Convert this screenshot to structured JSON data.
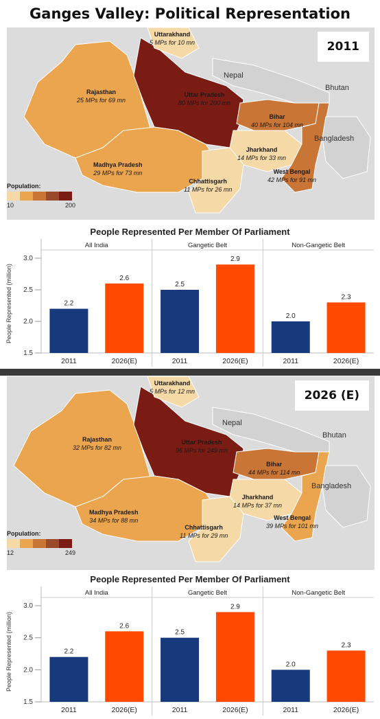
{
  "title": "Ganges Valley: Political Representation",
  "colors": {
    "blue": "#173a7d",
    "orange": "#ff4a00",
    "pop_scale": [
      "#f5d9a7",
      "#eaa54e",
      "#c87536",
      "#9a4a2a",
      "#7a1c14"
    ],
    "map_bg": "#dcdcdc"
  },
  "maps": [
    {
      "year_label": "2011",
      "legend": {
        "title": "Population:",
        "min": "10",
        "max": "200"
      },
      "geo_labels": {
        "nepal": "Nepal",
        "bhutan": "Bhutan",
        "bangladesh": "Bangladesh"
      },
      "states": [
        {
          "id": "uttarakhand",
          "name": "Uttarakhand",
          "value": "5 MPs for 10 mn"
        },
        {
          "id": "rajasthan",
          "name": "Rajasthan",
          "value": "25 MPs for 69 mn"
        },
        {
          "id": "uttar-pradesh",
          "name": "Uttar Pradesh",
          "value": "80 MPs for 200 mn"
        },
        {
          "id": "bihar",
          "name": "Bihar",
          "value": "40 MPs for 104 mn"
        },
        {
          "id": "jharkhand",
          "name": "Jharkhand",
          "value": "14 MPs for 33 mn"
        },
        {
          "id": "madhya-pradesh",
          "name": "Madhya Pradesh",
          "value": "29 MPs for 73 mn"
        },
        {
          "id": "west-bengal",
          "name": "West Bengal",
          "value": "42 MPs for 91 mn"
        },
        {
          "id": "chhattisgarh",
          "name": "Chhattisgarh",
          "value": "11 MPs for 26 mn"
        }
      ]
    },
    {
      "year_label": "2026 (E)",
      "legend": {
        "title": "Population:",
        "min": "12",
        "max": "249"
      },
      "geo_labels": {
        "nepal": "Nepal",
        "bhutan": "Bhutan",
        "bangladesh": "Bangladesh"
      },
      "states": [
        {
          "id": "uttarakhand",
          "name": "Uttarakhand",
          "value": "5 MPs for 12 mn"
        },
        {
          "id": "rajasthan",
          "name": "Rajasthan",
          "value": "32 MPs for 82 mn"
        },
        {
          "id": "uttar-pradesh",
          "name": "Uttar Pradesh",
          "value": "96 MPs for 249 mn"
        },
        {
          "id": "bihar",
          "name": "Bihar",
          "value": "44 MPs for 114 mn"
        },
        {
          "id": "jharkhand",
          "name": "Jharkhand",
          "value": "14 MPs for 37 mn"
        },
        {
          "id": "madhya-pradesh",
          "name": "Madhya Pradesh",
          "value": "34 MPs for 88 mn"
        },
        {
          "id": "west-bengal",
          "name": "West Bengal",
          "value": "39 MPs for 101 mn"
        },
        {
          "id": "chhattisgarh",
          "name": "Chhattisgarh",
          "value": "11 MPs for 29 mn"
        }
      ]
    }
  ],
  "chart_data": [
    {
      "type": "bar",
      "title": "People Represented Per Member Of Parliament",
      "ylabel": "People Represented (million)",
      "xlabel": "",
      "ylim": [
        1.5,
        3.0
      ],
      "yticks": [
        "1.5",
        "2.0",
        "2.5",
        "3.0"
      ],
      "grid": false,
      "categories": [
        "2011",
        "2026(E)"
      ],
      "panels": [
        {
          "name": "All India",
          "values": [
            2.2,
            2.6
          ],
          "labels": [
            "2.2",
            "2.6"
          ]
        },
        {
          "name": "Gangetic Belt",
          "values": [
            2.5,
            2.9
          ],
          "labels": [
            "2.5",
            "2.9"
          ]
        },
        {
          "name": "Non-Gangetic Belt",
          "values": [
            2.0,
            2.3
          ],
          "labels": [
            "2.0",
            "2.3"
          ]
        }
      ]
    },
    {
      "type": "bar",
      "title": "People Represented Per Member Of Parliament",
      "ylabel": "People Represented (million)",
      "xlabel": "",
      "ylim": [
        1.5,
        3.0
      ],
      "yticks": [
        "1.5",
        "2.0",
        "2.5",
        "3.0"
      ],
      "grid": false,
      "categories": [
        "2011",
        "2026(E)"
      ],
      "panels": [
        {
          "name": "All India",
          "values": [
            2.2,
            2.6
          ],
          "labels": [
            "2.2",
            "2.6"
          ]
        },
        {
          "name": "Gangetic Belt",
          "values": [
            2.5,
            2.9
          ],
          "labels": [
            "2.5",
            "2.9"
          ]
        },
        {
          "name": "Non-Gangetic Belt",
          "values": [
            2.0,
            2.3
          ],
          "labels": [
            "2.0",
            "2.3"
          ]
        }
      ]
    }
  ]
}
